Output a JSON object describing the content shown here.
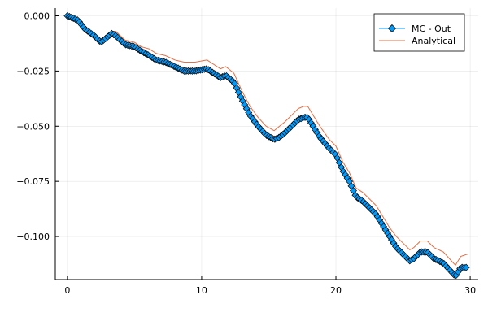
{
  "chart_data": {
    "type": "line",
    "title": "",
    "xlabel": "",
    "ylabel": "",
    "xlim": [
      -0.9,
      30.6
    ],
    "ylim": [
      -0.1195,
      0.0035
    ],
    "x_ticks": [
      0,
      10,
      20,
      30
    ],
    "x_tick_labels": [
      "0",
      "10",
      "20",
      "30"
    ],
    "y_ticks": [
      0.0,
      -0.025,
      -0.05,
      -0.075,
      -0.1
    ],
    "y_tick_labels": [
      "0.000",
      "−0.025",
      "−0.050",
      "−0.075",
      "−0.100"
    ],
    "grid": true,
    "legend_position": "top-right",
    "mc_step": 0.15,
    "series": [
      {
        "name": "MC - Out",
        "color": "#009af9",
        "marker": "diamond",
        "anchors": {
          "x": [
            0,
            0.8,
            1.3,
            2.0,
            2.5,
            3.3,
            3.6,
            4.3,
            5.0,
            5.5,
            6.1,
            6.6,
            7.3,
            8.0,
            8.7,
            9.5,
            10.4,
            10.9,
            11.4,
            11.8,
            12.4,
            13.0,
            13.6,
            14.2,
            14.8,
            15.4,
            15.8,
            16.2,
            16.7,
            17.2,
            17.6,
            17.9,
            18.3,
            18.8,
            19.5,
            20.0,
            20.5,
            21.0,
            21.5,
            22.0,
            22.5,
            23.0,
            23.5,
            24.0,
            24.5,
            25.0,
            25.5,
            25.8,
            26.3,
            26.8,
            27.3,
            28.0,
            28.6,
            28.9,
            29.3,
            29.8
          ],
          "y": [
            0.0,
            -0.002,
            -0.006,
            -0.009,
            -0.012,
            -0.008,
            -0.009,
            -0.013,
            -0.014,
            -0.016,
            -0.018,
            -0.02,
            -0.021,
            -0.023,
            -0.025,
            -0.025,
            -0.024,
            -0.026,
            -0.028,
            -0.027,
            -0.03,
            -0.038,
            -0.045,
            -0.05,
            -0.054,
            -0.056,
            -0.055,
            -0.053,
            -0.05,
            -0.047,
            -0.046,
            -0.046,
            -0.05,
            -0.055,
            -0.06,
            -0.063,
            -0.07,
            -0.075,
            -0.082,
            -0.084,
            -0.087,
            -0.09,
            -0.095,
            -0.1,
            -0.105,
            -0.108,
            -0.111,
            -0.11,
            -0.107,
            -0.107,
            -0.11,
            -0.112,
            -0.116,
            -0.118,
            -0.114,
            -0.114
          ]
        }
      },
      {
        "name": "Analytical",
        "color": "#e26f46",
        "anchors": {
          "x": [
            0,
            0.8,
            1.3,
            2.0,
            2.5,
            3.3,
            3.6,
            4.3,
            5.0,
            5.5,
            6.1,
            6.6,
            7.3,
            8.0,
            8.7,
            9.5,
            10.4,
            10.9,
            11.4,
            11.8,
            12.4,
            13.0,
            13.6,
            14.2,
            14.8,
            15.4,
            15.8,
            16.2,
            16.7,
            17.2,
            17.6,
            17.9,
            18.3,
            18.8,
            19.5,
            20.0,
            20.5,
            21.0,
            21.5,
            22.0,
            22.5,
            23.0,
            23.5,
            24.0,
            24.5,
            25.0,
            25.5,
            25.8,
            26.3,
            26.8,
            27.3,
            28.0,
            28.6,
            28.9,
            29.3,
            29.8
          ],
          "y": [
            0.0,
            -0.002,
            -0.005,
            -0.008,
            -0.011,
            -0.007,
            -0.007,
            -0.011,
            -0.012,
            -0.014,
            -0.015,
            -0.017,
            -0.018,
            -0.02,
            -0.021,
            -0.021,
            -0.02,
            -0.022,
            -0.024,
            -0.023,
            -0.026,
            -0.034,
            -0.041,
            -0.046,
            -0.05,
            -0.052,
            -0.05,
            -0.048,
            -0.045,
            -0.042,
            -0.041,
            -0.041,
            -0.045,
            -0.05,
            -0.056,
            -0.059,
            -0.066,
            -0.071,
            -0.078,
            -0.08,
            -0.083,
            -0.086,
            -0.091,
            -0.096,
            -0.1,
            -0.103,
            -0.106,
            -0.105,
            -0.102,
            -0.102,
            -0.105,
            -0.107,
            -0.111,
            -0.113,
            -0.109,
            -0.108
          ]
        }
      }
    ]
  }
}
